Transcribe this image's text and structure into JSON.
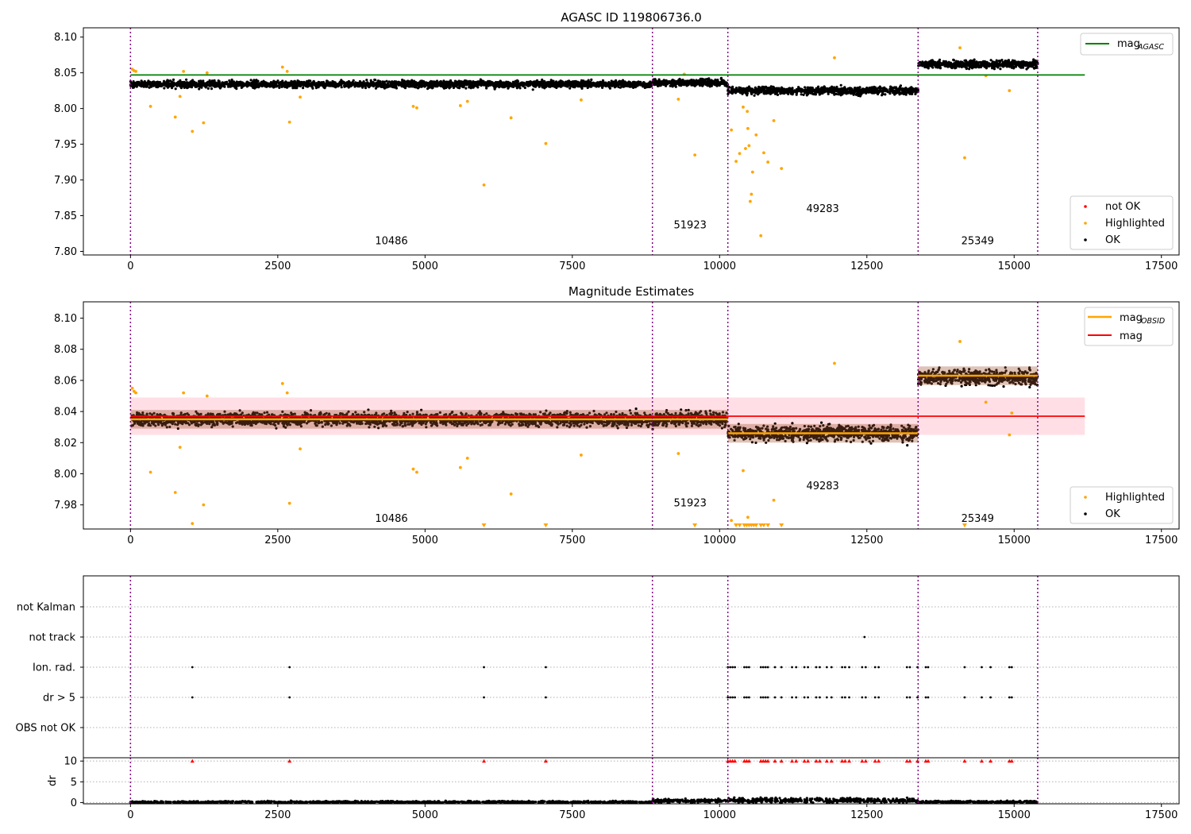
{
  "chart_data": [
    {
      "type": "scatter",
      "title": "AGASC ID 119806736.0",
      "xlim": [
        -800,
        17800
      ],
      "ylim": [
        7.795,
        8.113
      ],
      "xticks": [
        0,
        2500,
        5000,
        7500,
        10000,
        12500,
        15000,
        17500
      ],
      "xtick_labels": [
        "0",
        "2500",
        "5000",
        "7500",
        "10000",
        "12500",
        "15000",
        "17500"
      ],
      "yticks": [
        7.8,
        7.85,
        7.9,
        7.95,
        8.0,
        8.05,
        8.1
      ],
      "ytick_labels": [
        "7.80",
        "7.85",
        "7.90",
        "7.95",
        "8.00",
        "8.05",
        "8.10"
      ],
      "obsid_boundaries": [
        0,
        8860,
        10140,
        13370,
        15400
      ],
      "obsid_labels": [
        {
          "text": "10486",
          "x": 4430,
          "y": 7.81
        },
        {
          "text": "51923",
          "x": 9500,
          "y": 7.832
        },
        {
          "text": "49283",
          "x": 11750,
          "y": 7.855
        },
        {
          "text": "25349",
          "x": 14380,
          "y": 7.81
        }
      ],
      "segments": [
        {
          "x_start": 0,
          "x_end": 8860,
          "center": 8.034,
          "spread": 0.007
        },
        {
          "x_start": 8860,
          "x_end": 10140,
          "center": 8.036,
          "spread": 0.007
        },
        {
          "x_start": 10140,
          "x_end": 13370,
          "center": 8.025,
          "spread": 0.008
        },
        {
          "x_start": 13370,
          "x_end": 15400,
          "center": 8.062,
          "spread": 0.008
        }
      ],
      "reference_line": {
        "label": "mag",
        "label_sub": "AGASC",
        "value": 8.047,
        "color": "#008000",
        "x_end": 16200
      },
      "highlighted": [
        [
          30,
          8.055
        ],
        [
          60,
          8.053
        ],
        [
          90,
          8.052
        ],
        [
          340,
          8.003
        ],
        [
          760,
          7.988
        ],
        [
          840,
          8.017
        ],
        [
          900,
          8.052
        ],
        [
          1050,
          7.968
        ],
        [
          1240,
          7.98
        ],
        [
          1300,
          8.05
        ],
        [
          2580,
          8.058
        ],
        [
          2660,
          8.052
        ],
        [
          2700,
          7.981
        ],
        [
          2880,
          8.016
        ],
        [
          4800,
          8.003
        ],
        [
          4860,
          8.001
        ],
        [
          5600,
          8.004
        ],
        [
          5720,
          8.01
        ],
        [
          6000,
          7.893
        ],
        [
          6460,
          7.987
        ],
        [
          7050,
          7.951
        ],
        [
          7650,
          8.012
        ],
        [
          9300,
          8.013
        ],
        [
          9580,
          7.935
        ],
        [
          9400,
          8.048
        ],
        [
          10200,
          7.97
        ],
        [
          10280,
          7.926
        ],
        [
          10340,
          7.937
        ],
        [
          10400,
          8.002
        ],
        [
          10440,
          7.944
        ],
        [
          10470,
          7.996
        ],
        [
          10480,
          7.972
        ],
        [
          10500,
          7.948
        ],
        [
          10520,
          7.87
        ],
        [
          10540,
          7.88
        ],
        [
          10560,
          7.911
        ],
        [
          10620,
          7.963
        ],
        [
          10700,
          7.822
        ],
        [
          10750,
          7.938
        ],
        [
          10820,
          7.925
        ],
        [
          10920,
          7.983
        ],
        [
          11050,
          7.916
        ],
        [
          11950,
          8.071
        ],
        [
          14080,
          8.085
        ],
        [
          14160,
          7.931
        ],
        [
          14520,
          8.046
        ],
        [
          14920,
          8.025
        ]
      ],
      "legend": {
        "position": "top-right / lower-right",
        "entries": [
          "mag AGASC",
          "not OK",
          "Highlighted",
          "OK"
        ]
      }
    },
    {
      "type": "scatter",
      "title": "Magnitude Estimates",
      "xlim": [
        -800,
        17800
      ],
      "ylim": [
        7.9645,
        8.1105
      ],
      "xticks": [
        0,
        2500,
        5000,
        7500,
        10000,
        12500,
        15000,
        17500
      ],
      "xtick_labels": [
        "0",
        "2500",
        "5000",
        "7500",
        "10000",
        "12500",
        "15000",
        "17500"
      ],
      "yticks": [
        7.98,
        8.0,
        8.02,
        8.04,
        8.06,
        8.08,
        8.1
      ],
      "ytick_labels": [
        "7.98",
        "8.00",
        "8.02",
        "8.04",
        "8.06",
        "8.08",
        "8.10"
      ],
      "obsid_boundaries": [
        0,
        8860,
        10140,
        13370,
        15400
      ],
      "obsid_labels": [
        {
          "text": "10486",
          "x": 4430,
          "y": 7.969
        },
        {
          "text": "51923",
          "x": 9500,
          "y": 7.979
        },
        {
          "text": "49283",
          "x": 11750,
          "y": 7.99
        },
        {
          "text": "25349",
          "x": 14380,
          "y": 7.969
        }
      ],
      "segments": [
        {
          "x_start": 0,
          "x_end": 8860,
          "center": 8.035,
          "spread": 0.006
        },
        {
          "x_start": 8860,
          "x_end": 10140,
          "center": 8.035,
          "spread": 0.007
        },
        {
          "x_start": 10140,
          "x_end": 13370,
          "center": 8.026,
          "spread": 0.007
        },
        {
          "x_start": 13370,
          "x_end": 15400,
          "center": 8.062,
          "spread": 0.007
        }
      ],
      "mean_line": {
        "label": "mag",
        "value": 8.037,
        "color": "#ff0000",
        "band": [
          8.025,
          8.049
        ],
        "x_end": 16200
      },
      "obsid_mag_line": {
        "label": "mag",
        "label_sub": "OBSID",
        "color": "#ffa500",
        "segments": [
          [
            0,
            8860,
            8.035
          ],
          [
            8860,
            10140,
            8.035
          ],
          [
            10140,
            13370,
            8.026
          ],
          [
            13370,
            15400,
            8.063
          ]
        ]
      },
      "highlighted": [
        [
          30,
          8.055
        ],
        [
          60,
          8.053
        ],
        [
          90,
          8.052
        ],
        [
          340,
          8.001
        ],
        [
          760,
          7.988
        ],
        [
          840,
          8.017
        ],
        [
          900,
          8.052
        ],
        [
          1050,
          7.968
        ],
        [
          1240,
          7.98
        ],
        [
          1300,
          8.05
        ],
        [
          2580,
          8.058
        ],
        [
          2660,
          8.052
        ],
        [
          2700,
          7.981
        ],
        [
          2880,
          8.016
        ],
        [
          4800,
          8.003
        ],
        [
          4860,
          8.001
        ],
        [
          5600,
          8.004
        ],
        [
          5720,
          8.01
        ],
        [
          6460,
          7.987
        ],
        [
          7650,
          8.012
        ],
        [
          9300,
          8.013
        ],
        [
          10200,
          7.97
        ],
        [
          10400,
          8.002
        ],
        [
          10480,
          7.972
        ],
        [
          10920,
          7.983
        ],
        [
          11950,
          8.071
        ],
        [
          14080,
          8.085
        ],
        [
          14520,
          8.046
        ],
        [
          14920,
          8.025
        ],
        [
          14960,
          8.039
        ]
      ],
      "below_range_markers": [
        6000,
        7050,
        9580,
        10280,
        10340,
        10420,
        10460,
        10500,
        10540,
        10580,
        10620,
        10700,
        10750,
        10820,
        11050,
        14160
      ],
      "legend": {
        "position": "top-right / lower-right",
        "entries": [
          "mag OBSID",
          "mag",
          "Highlighted",
          "OK"
        ]
      }
    },
    {
      "type": "scatter",
      "title": "",
      "xlim": [
        -800,
        17800
      ],
      "xticks": [
        0,
        2500,
        5000,
        7500,
        10000,
        12500,
        15000,
        17500
      ],
      "xtick_labels": [
        "0",
        "2500",
        "5000",
        "7500",
        "10000",
        "12500",
        "15000",
        "17500"
      ],
      "flag_rows": [
        "not Kalman",
        "not track",
        "Ion. rad.",
        "dr > 5",
        "OBS not OK"
      ],
      "obsid_boundaries": [
        0,
        8860,
        10140,
        13370,
        15400
      ],
      "flag_points": {
        "not track": [
          12460
        ],
        "Ion. rad.": [
          1050,
          2700,
          6000,
          7050,
          10140,
          10180,
          10220,
          10260,
          10420,
          10460,
          10500,
          10700,
          10740,
          10780,
          10820,
          10940,
          11050,
          11230,
          11300,
          11440,
          11500,
          11640,
          11700,
          11820,
          11900,
          12080,
          12130,
          12200,
          12420,
          12480,
          12640,
          12700,
          13180,
          13230,
          13360,
          13500,
          13540,
          14160,
          14450,
          14600,
          14920,
          14960
        ],
        "dr > 5": [
          1050,
          2700,
          6000,
          7050,
          10140,
          10180,
          10220,
          10260,
          10420,
          10460,
          10500,
          10700,
          10740,
          10780,
          10820,
          10940,
          11050,
          11230,
          11300,
          11440,
          11500,
          11640,
          11700,
          11820,
          11900,
          12080,
          12130,
          12200,
          12420,
          12480,
          12640,
          12700,
          13180,
          13230,
          13360,
          13500,
          13540,
          14160,
          14450,
          14600,
          14920,
          14960
        ]
      }
    },
    {
      "type": "scatter",
      "title": "",
      "ylabel": "dr",
      "xlim": [
        -800,
        17800
      ],
      "ylim": [
        -0.3,
        10.8
      ],
      "yticks": [
        0,
        5,
        10
      ],
      "ytick_labels": [
        "0",
        "5",
        "10"
      ],
      "xticks": [
        0,
        2500,
        5000,
        7500,
        10000,
        12500,
        15000,
        17500
      ],
      "xtick_labels": [
        "0",
        "2500",
        "5000",
        "7500",
        "10000",
        "12500",
        "15000",
        "17500"
      ],
      "obsid_boundaries": [
        0,
        8860,
        10140,
        13370,
        15400
      ],
      "clipped_markers": [
        1050,
        2700,
        6000,
        7050,
        10140,
        10180,
        10220,
        10260,
        10420,
        10460,
        10500,
        10700,
        10740,
        10780,
        10820,
        10940,
        11050,
        11230,
        11300,
        11440,
        11500,
        11640,
        11700,
        11820,
        11900,
        12080,
        12130,
        12200,
        12420,
        12480,
        12640,
        12700,
        13180,
        13230,
        13360,
        13500,
        13540,
        14160,
        14450,
        14600,
        14920,
        14960
      ],
      "segments": [
        {
          "x_start": 0,
          "x_end": 8860,
          "center": 0.1,
          "spread": 0.4
        },
        {
          "x_start": 8860,
          "x_end": 10140,
          "center": 0.4,
          "spread": 0.6
        },
        {
          "x_start": 10140,
          "x_end": 13370,
          "center": 0.5,
          "spread": 0.8
        },
        {
          "x_start": 13370,
          "x_end": 15400,
          "center": 0.15,
          "spread": 0.4
        }
      ]
    }
  ],
  "colors": {
    "ok": "#000000",
    "highlighted": "#ffa500",
    "not_ok": "#ff0000",
    "agasc_line": "#008000",
    "mean_line": "#ff0000",
    "band": "#ffc0cb",
    "obsid_line": "#ffa500",
    "boundary": "#800080"
  },
  "legends": {
    "top": {
      "agasc_main": "mag",
      "agasc_sub": "AGASC",
      "not_ok": "not OK",
      "highlighted": "Highlighted",
      "ok": "OK"
    },
    "middle": {
      "obsid_main": "mag",
      "obsid_sub": "OBSID",
      "mag": "mag",
      "highlighted": "Highlighted",
      "ok": "OK"
    }
  }
}
